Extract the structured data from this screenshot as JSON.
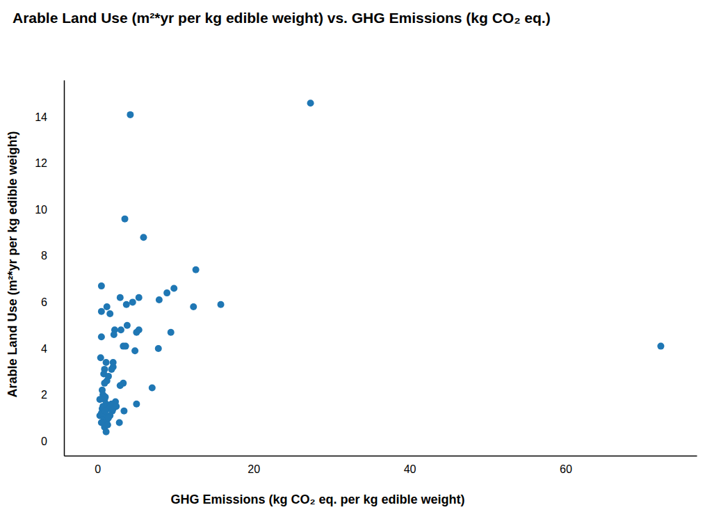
{
  "chart_data": {
    "type": "scatter",
    "title": "Arable Land Use (m²*yr per kg edible weight) vs. GHG Emissions (kg CO₂ eq.)",
    "x_label": "GHG Emissions (kg CO₂ eq. per kg edible weight)",
    "y_label": "Arable Land Use (m²*yr per kg edible weight)",
    "color": "#1f77b4",
    "marker": "circle",
    "x": [
      4.2,
      27.3,
      3.5,
      5.9,
      0.5,
      12.6,
      9.8,
      8.9,
      2.9,
      5.3,
      7.9,
      1.2,
      3.7,
      4.5,
      12.3,
      15.8,
      0.5,
      1.6,
      3.8,
      2.2,
      3.0,
      5.3,
      5.0,
      9.4,
      2.1,
      0.5,
      3.3,
      3.6,
      7.8,
      4.8,
      72.2,
      0.4,
      1.1,
      2.0,
      2.0,
      1.8,
      0.9,
      0.8,
      1.4,
      1.2,
      0.9,
      3.3,
      2.9,
      7.0,
      0.6,
      0.7,
      0.9,
      0.3,
      2.3,
      1.1,
      5.0,
      1.3,
      0.6,
      1.9,
      3.4,
      0.9,
      0.3,
      1.6,
      0.8,
      1.2,
      0.5,
      1.2,
      2.8,
      0.9,
      1.1,
      1.5,
      0.7,
      1.0,
      1.4,
      0.5,
      1.8,
      2.0,
      1.3,
      2.4,
      1.0
    ],
    "values": [
      14.1,
      14.6,
      9.6,
      8.8,
      6.7,
      7.4,
      6.6,
      6.4,
      6.2,
      6.2,
      6.1,
      5.8,
      5.9,
      6.0,
      5.8,
      5.9,
      5.6,
      5.5,
      5.0,
      4.8,
      4.8,
      4.8,
      4.7,
      4.7,
      4.6,
      4.5,
      4.1,
      4.1,
      4.0,
      3.9,
      4.1,
      3.6,
      3.4,
      3.4,
      3.2,
      3.1,
      3.1,
      2.9,
      2.8,
      2.6,
      2.5,
      2.5,
      2.4,
      2.3,
      2.2,
      2.0,
      1.8,
      1.8,
      1.7,
      1.6,
      1.6,
      1.5,
      1.4,
      1.3,
      1.3,
      1.2,
      1.1,
      1.1,
      1.0,
      0.9,
      0.8,
      0.7,
      0.8,
      0.6,
      0.4,
      1.4,
      1.5,
      1.9,
      1.0,
      1.2,
      1.6,
      1.4,
      0.7,
      1.5,
      1.3
    ],
    "xlim": [
      -4.3,
      76.8
    ],
    "xticks": [
      0,
      20,
      40,
      60
    ],
    "ylim": [
      -0.63,
      15.6
    ],
    "yticks": [
      0,
      2,
      4,
      6,
      8,
      10,
      12,
      14
    ],
    "grid": false
  }
}
